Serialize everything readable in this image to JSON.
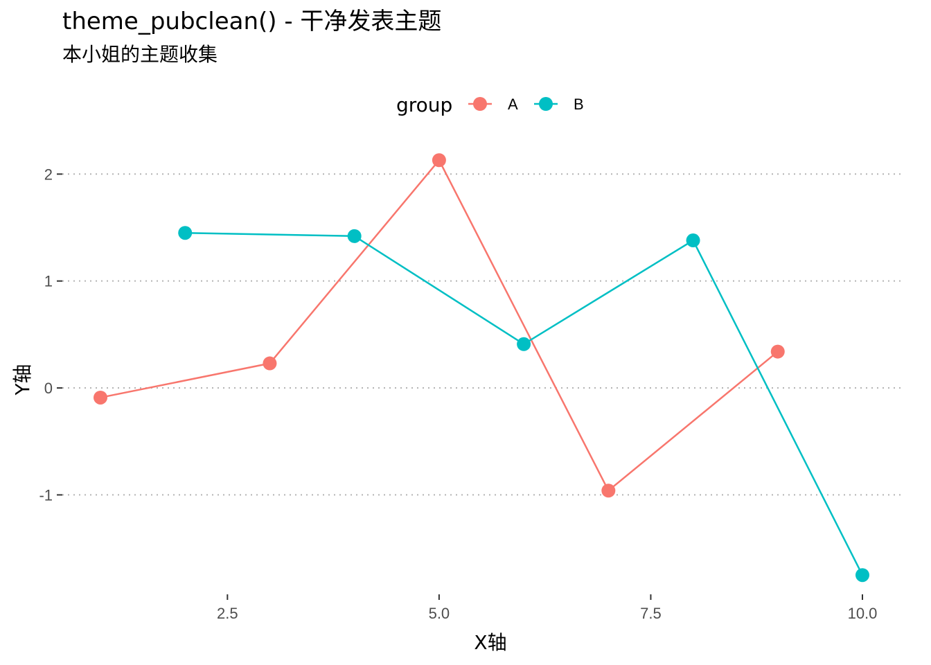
{
  "chart_data": {
    "type": "line",
    "title": "theme_pubclean() - 干净发表主题",
    "subtitle": "本小姐的主题收集",
    "xlabel": "X轴",
    "ylabel": "Y轴",
    "xlim": [
      0.55,
      10.45
    ],
    "ylim": [
      -1.93,
      2.3
    ],
    "x_ticks": [
      2.5,
      5.0,
      7.5,
      10.0
    ],
    "x_tick_labels": [
      "2.5",
      "5.0",
      "7.5",
      "10.0"
    ],
    "y_ticks": [
      -1,
      0,
      1,
      2
    ],
    "y_tick_labels": [
      "-1",
      "0",
      "1",
      "2"
    ],
    "grid": "horizontal-dotted",
    "legend": {
      "title": "group",
      "position": "top"
    },
    "series": [
      {
        "name": "A",
        "color": "#F8766D",
        "x": [
          1,
          3,
          5,
          7,
          9
        ],
        "y": [
          -0.09,
          0.23,
          2.13,
          -0.96,
          0.34
        ]
      },
      {
        "name": "B",
        "color": "#00BFC4",
        "x": [
          2,
          4,
          6,
          8,
          10
        ],
        "y": [
          1.45,
          1.42,
          0.41,
          1.38,
          -1.75
        ]
      }
    ]
  }
}
